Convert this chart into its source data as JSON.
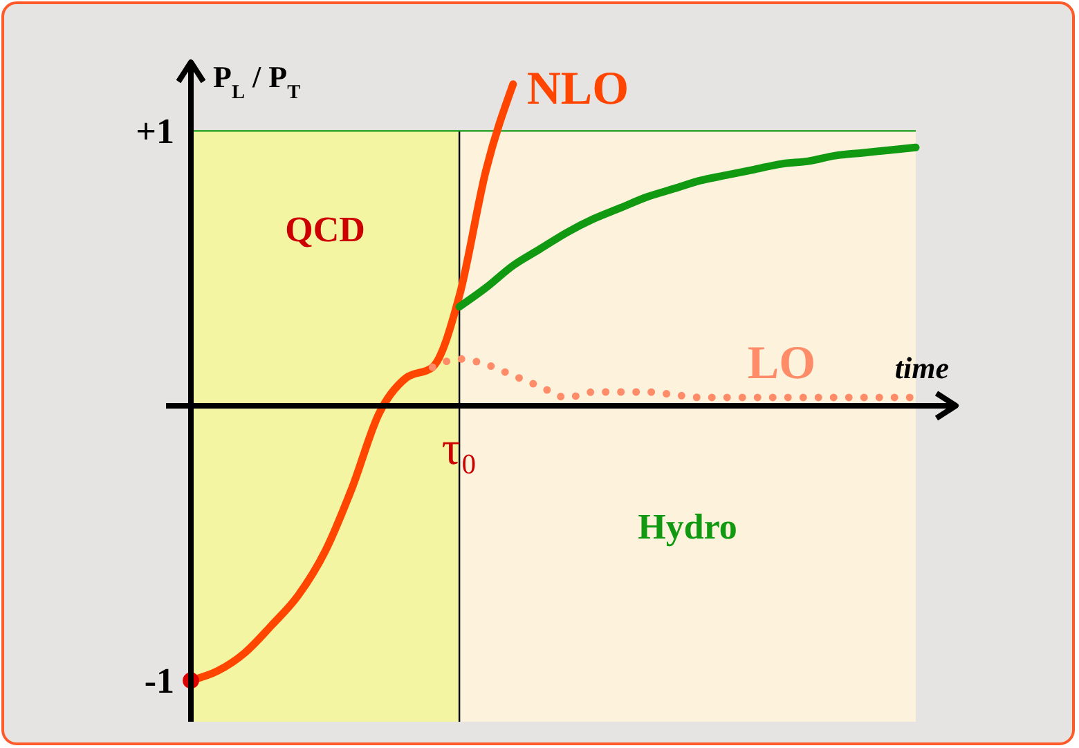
{
  "chart_data": {
    "type": "line",
    "xlabel": "time",
    "ylabel": "P$_{L}$ / P$_{T}$",
    "categories": [
      null,
      null,
      null,
      null,
      null,
      null,
      null,
      null,
      null,
      null,
      "τ₀",
      null,
      null,
      null,
      null,
      null,
      null,
      null,
      null,
      null,
      null,
      null,
      null,
      null,
      null,
      null,
      null,
      null
    ],
    "ylim": [
      -1.15,
      1.25
    ],
    "yticks": [
      {
        "value": 1,
        "label": "+1"
      },
      {
        "value": -1,
        "label": "-1"
      }
    ],
    "series": [
      {
        "name": "NLO",
        "color": "#ff4500",
        "line_style": "solid",
        "values": [
          -1,
          -0.965,
          -0.9,
          -0.8,
          -0.69,
          -0.53,
          -0.3,
          -0.03,
          0.1,
          0.14,
          0.4,
          0.86,
          1.17,
          null,
          null,
          null,
          null,
          null,
          null,
          null,
          null,
          null,
          null,
          null,
          null,
          null,
          null,
          null
        ]
      },
      {
        "name": "LO",
        "color": "#ff8c69",
        "line_style": "dotted",
        "values": [
          null,
          null,
          null,
          null,
          null,
          null,
          null,
          null,
          null,
          0.14,
          0.17,
          0.15,
          0.11,
          0.07,
          0.03,
          0.05,
          0.05,
          0.05,
          0.04,
          0.03,
          0.03,
          0.03,
          0.03,
          0.03,
          0.03,
          0.03,
          0.03,
          0.03
        ]
      },
      {
        "color": "#119911",
        "line_style": "solid",
        "values": [
          null,
          null,
          null,
          null,
          null,
          null,
          null,
          null,
          null,
          null,
          0.36,
          0.43,
          0.51,
          0.57,
          0.63,
          0.68,
          0.72,
          0.76,
          0.79,
          0.82,
          0.84,
          0.86,
          0.88,
          0.89,
          0.91,
          0.92,
          0.93,
          0.94
        ]
      },
      {
        "type": "scatter",
        "color": "#dd0000",
        "marker": "circle",
        "values": [
          -1,
          null,
          null,
          null,
          null,
          null,
          null,
          null,
          null,
          null,
          null,
          null,
          null,
          null,
          null,
          null,
          null,
          null,
          null,
          null,
          null,
          null,
          null,
          null,
          null,
          null,
          null,
          null
        ]
      }
    ],
    "annotations": [
      "QCD",
      "Hydro"
    ],
    "ref_lines": [
      {
        "axis": "y",
        "value": 1,
        "color": "#119911"
      }
    ]
  }
}
